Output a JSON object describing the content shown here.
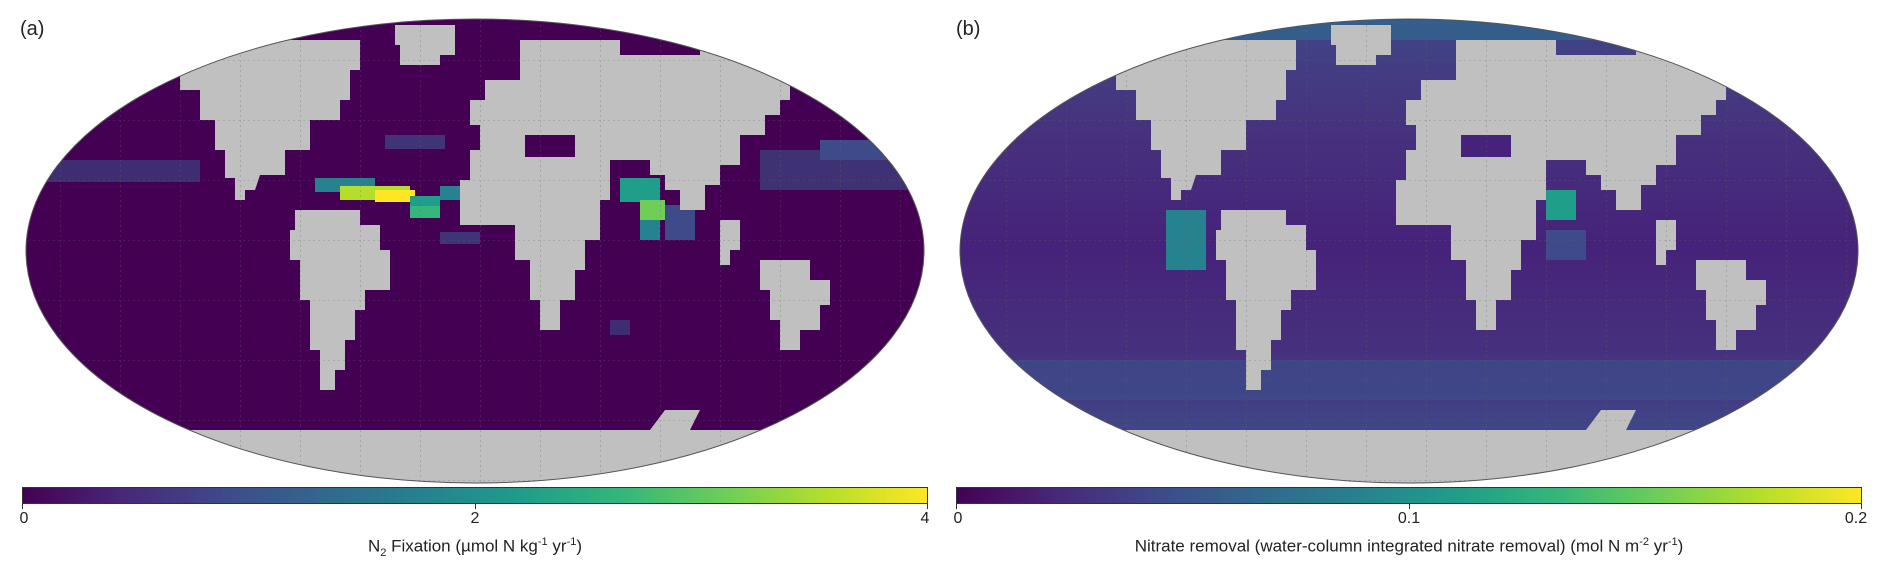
{
  "panels": [
    {
      "label": "(a)",
      "colorbar": {
        "ticks": [
          "0",
          "2",
          "4"
        ],
        "title_parts": {
          "a": "N",
          "sub1": "2",
          "b": " Fixation (µmol N kg",
          "sup1": "-1",
          "c": " yr",
          "sup2": "-1",
          "d": ")"
        }
      }
    },
    {
      "label": "(b)",
      "colorbar": {
        "ticks": [
          "0",
          "0.1",
          "0.2"
        ],
        "title_parts": {
          "a": "Nitrate removal (water-column integrated nitrate removal) (mol N m",
          "sup1": "-2",
          "b": " yr",
          "sup2": "-1",
          "c": ")"
        }
      }
    }
  ],
  "colors": {
    "ocean_base": "#440154",
    "land": "#c0c0c0",
    "colormap": [
      "#440154",
      "#482878",
      "#3e4a89",
      "#31688e",
      "#26828e",
      "#1f9e89",
      "#35b779",
      "#6ece58",
      "#b5de2b",
      "#fde725"
    ]
  }
}
